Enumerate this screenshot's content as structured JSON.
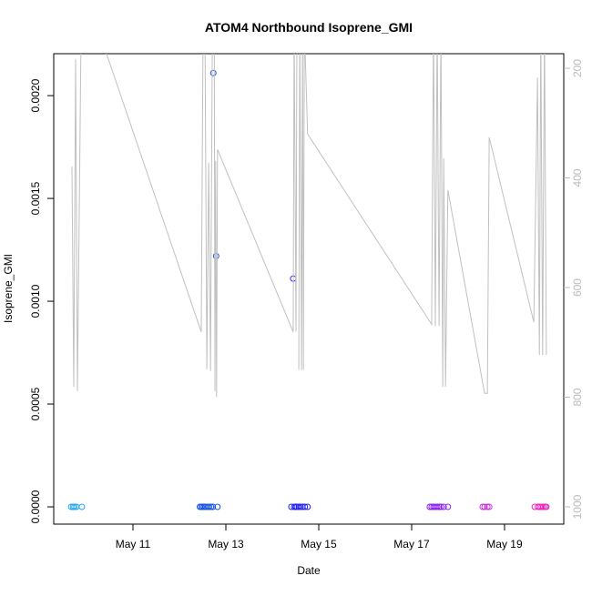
{
  "chart_data": {
    "type": "scatter",
    "title": "ATOM4 Northbound Isoprene_GMI",
    "x_label": "Date",
    "y_label": "Isoprene_GMI",
    "xlim": [
      9.294,
      20.275
    ],
    "ylim": [
      -8.4e-05,
      0.002204
    ],
    "y2lim": [
      1031.5,
      173.4
    ],
    "xticks": [
      {
        "value": 11,
        "label": "May 11"
      },
      {
        "value": 13,
        "label": "May 13"
      },
      {
        "value": 15,
        "label": "May 15"
      },
      {
        "value": 17,
        "label": "May 17"
      },
      {
        "value": 19,
        "label": "May 19"
      }
    ],
    "yticks": [
      {
        "value": 0,
        "label": "0.0000"
      },
      {
        "value": 0.0005,
        "label": "0.0005"
      },
      {
        "value": 0.001,
        "label": "0.0010"
      },
      {
        "value": 0.0015,
        "label": "0.0015"
      },
      {
        "value": 0.002,
        "label": "0.0020"
      }
    ],
    "y2ticks": [
      200,
      400,
      600,
      800,
      1000
    ],
    "series": [
      {
        "type": "scatter",
        "color": "#1ea7f0",
        "x": [
          9.67,
          9.71,
          9.74,
          9.78,
          9.9
        ],
        "values": [
          0,
          0,
          0,
          0,
          0
        ]
      },
      {
        "type": "scatter",
        "color": "#1a55e6",
        "x": [
          12.44,
          12.47,
          12.5,
          12.53,
          12.56,
          12.6,
          12.64,
          12.68,
          12.72,
          12.73,
          12.79,
          12.82
        ],
        "values": [
          0,
          0,
          0,
          0,
          0,
          0,
          0,
          0,
          0,
          0.00211,
          0.00122,
          0
        ]
      },
      {
        "type": "scatter",
        "color": "#2424ee",
        "x": [
          14.41,
          14.45,
          14.47,
          14.5,
          14.53,
          14.57,
          14.61,
          14.65,
          14.7,
          14.76
        ],
        "values": [
          0,
          0.00111,
          0,
          0,
          0,
          0,
          0,
          0,
          0,
          0
        ]
      },
      {
        "type": "scatter",
        "color": "#8a22ee",
        "x": [
          17.39,
          17.43,
          17.47,
          17.51,
          17.55,
          17.59,
          17.63,
          17.69,
          17.78
        ],
        "values": [
          0,
          0,
          0,
          0,
          0,
          0,
          0,
          0,
          0
        ]
      },
      {
        "type": "scatter",
        "color": "#cc33dd",
        "x": [
          18.53,
          18.57,
          18.63,
          18.67
        ],
        "values": [
          0,
          0,
          0,
          0
        ]
      },
      {
        "type": "scatter",
        "color": "#ee22bb",
        "x": [
          19.65,
          19.72,
          19.76,
          19.8,
          19.84,
          19.88,
          19.9
        ],
        "values": [
          0,
          0,
          0,
          0,
          0,
          0,
          0
        ]
      },
      {
        "type": "line",
        "axis": "y2",
        "color": "#c0c0c0",
        "x": [
          9.686,
          9.725,
          9.765,
          9.804,
          9.882,
          10.196,
          12.47,
          12.51,
          12.55,
          12.59,
          12.63,
          12.67,
          12.71,
          12.75,
          12.765,
          12.78,
          12.8,
          12.82,
          14.45,
          14.47,
          14.51,
          14.53,
          14.59,
          14.57,
          14.59,
          14.63,
          14.65,
          14.67,
          14.69,
          14.76,
          17.43,
          17.47,
          17.51,
          17.55,
          17.59,
          17.63,
          17.67,
          17.69,
          17.73,
          17.78,
          18.57,
          18.63,
          18.67,
          19.63,
          19.71,
          19.75,
          19.78,
          19.82,
          19.86,
          19.9
        ],
        "values": [
          379,
          781,
          183,
          789,
          140,
          115,
          681,
          120,
          120,
          749,
          372,
          752,
          120,
          120,
          789,
          369,
          800,
          348,
          681,
          120,
          680,
          120,
          120,
          750,
          120,
          750,
          120,
          750,
          120,
          320,
          667,
          120,
          670,
          120,
          670,
          120,
          781,
          364,
          781,
          422,
          793,
          793,
          326,
          663,
          217,
          723,
          120,
          723,
          120,
          723
        ]
      }
    ]
  }
}
